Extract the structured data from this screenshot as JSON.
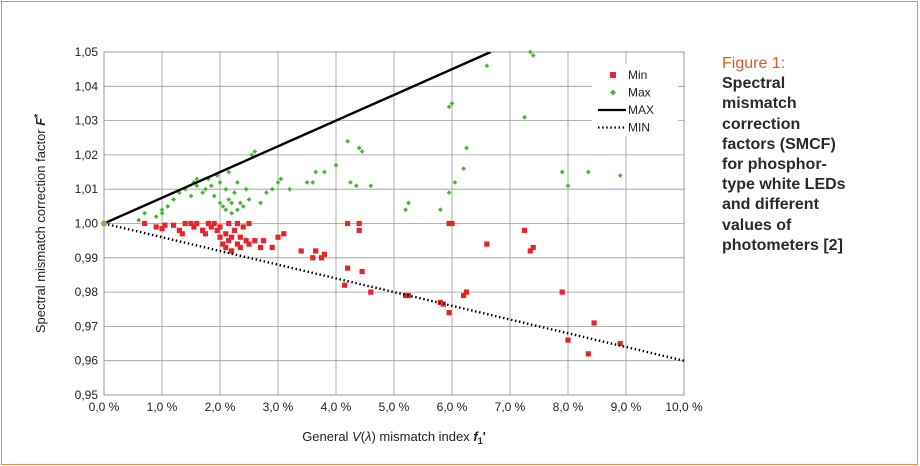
{
  "caption": {
    "label": "Figure 1:",
    "text": "Spectral\nmismatch\ncorrection\nfactors (SMCF)\nfor phosphor-\ntype white LEDs\nand different\nvalues of\nphotometers [2]"
  },
  "colors": {
    "frame": "#f08a4b",
    "caption_label": "#e4572e",
    "min": "#e8242b",
    "max": "#4bb636",
    "line": "#000000",
    "grid": "#9a9a9a"
  },
  "chart_data": {
    "type": "scatter",
    "title": "",
    "xlabel_parts": [
      "General ",
      "V",
      "(",
      "λ",
      ") mismatch index ",
      "f",
      "1",
      "'"
    ],
    "ylabel_parts": [
      "Spectral mismatch correction factor ",
      "F",
      "*"
    ],
    "xlim": [
      0,
      10
    ],
    "ylim": [
      0.95,
      1.05
    ],
    "x_ticks": [
      "0,0 %",
      "1,0 %",
      "2,0 %",
      "3,0 %",
      "4,0 %",
      "5,0 %",
      "6,0 %",
      "7,0 %",
      "8,0 %",
      "9,0 %",
      "10,0 %"
    ],
    "y_ticks": [
      "0,95",
      "0,96",
      "0,97",
      "0,98",
      "0,99",
      "1,00",
      "1,01",
      "1,02",
      "1,03",
      "1,04",
      "1,05"
    ],
    "grid": true,
    "legend_position": "top-right",
    "series": [
      {
        "name": "Min",
        "marker": "square",
        "color": "#e8242b",
        "points": [
          [
            0.7,
            1.0
          ],
          [
            0.9,
            0.999
          ],
          [
            1.0,
            0.9985
          ],
          [
            1.05,
            0.9995
          ],
          [
            1.2,
            0.9995
          ],
          [
            1.3,
            0.998
          ],
          [
            1.35,
            0.997
          ],
          [
            1.4,
            1.0
          ],
          [
            1.5,
            1.0
          ],
          [
            1.55,
            0.999
          ],
          [
            1.6,
            1.0
          ],
          [
            1.7,
            0.998
          ],
          [
            1.75,
            0.997
          ],
          [
            1.8,
            1.0
          ],
          [
            1.85,
            0.999
          ],
          [
            1.9,
            1.0
          ],
          [
            1.95,
            0.998
          ],
          [
            2.0,
            0.996
          ],
          [
            2.0,
            0.999
          ],
          [
            2.05,
            0.994
          ],
          [
            2.1,
            0.993
          ],
          [
            2.1,
            0.997
          ],
          [
            2.15,
            0.995
          ],
          [
            2.15,
            1.0
          ],
          [
            2.2,
            0.992
          ],
          [
            2.2,
            0.996
          ],
          [
            2.25,
            0.998
          ],
          [
            2.3,
            0.994
          ],
          [
            2.3,
            1.0
          ],
          [
            2.35,
            0.993
          ],
          [
            2.35,
            0.996
          ],
          [
            2.4,
            0.999
          ],
          [
            2.45,
            0.995
          ],
          [
            2.5,
            0.994
          ],
          [
            2.5,
            1.0
          ],
          [
            2.6,
            0.995
          ],
          [
            2.7,
            0.993
          ],
          [
            2.75,
            0.995
          ],
          [
            2.9,
            0.993
          ],
          [
            3.0,
            0.996
          ],
          [
            3.1,
            0.997
          ],
          [
            3.4,
            0.992
          ],
          [
            3.6,
            0.99
          ],
          [
            3.65,
            0.992
          ],
          [
            3.75,
            0.99
          ],
          [
            3.8,
            0.991
          ],
          [
            4.15,
            0.982
          ],
          [
            4.2,
            0.987
          ],
          [
            4.2,
            1.0
          ],
          [
            4.4,
            0.998
          ],
          [
            4.4,
            1.0
          ],
          [
            4.45,
            0.986
          ],
          [
            4.6,
            0.98
          ],
          [
            5.2,
            0.979
          ],
          [
            5.25,
            0.979
          ],
          [
            5.8,
            0.977
          ],
          [
            5.85,
            0.9765
          ],
          [
            5.95,
            0.974
          ],
          [
            5.95,
            1.0
          ],
          [
            6.0,
            1.0
          ],
          [
            6.2,
            0.979
          ],
          [
            6.25,
            0.98
          ],
          [
            6.6,
            0.994
          ],
          [
            7.25,
            0.998
          ],
          [
            7.35,
            0.992
          ],
          [
            7.4,
            0.993
          ],
          [
            7.9,
            0.98
          ],
          [
            8.0,
            0.966
          ],
          [
            8.35,
            0.962
          ],
          [
            8.45,
            0.971
          ],
          [
            8.9,
            0.965
          ]
        ]
      },
      {
        "name": "Max",
        "marker": "diamond",
        "color": "#4bb636",
        "points": [
          [
            0.6,
            1.001
          ],
          [
            0.7,
            1.003
          ],
          [
            0.9,
            1.002
          ],
          [
            1.0,
            1.004
          ],
          [
            1.0,
            1.003
          ],
          [
            1.1,
            1.005
          ],
          [
            1.2,
            1.007
          ],
          [
            1.3,
            1.009
          ],
          [
            1.4,
            1.01
          ],
          [
            1.5,
            1.008
          ],
          [
            1.55,
            1.012
          ],
          [
            1.6,
            1.011
          ],
          [
            1.6,
            1.013
          ],
          [
            1.7,
            1.009
          ],
          [
            1.75,
            1.01
          ],
          [
            1.8,
            1.013
          ],
          [
            1.85,
            1.011
          ],
          [
            1.9,
            1.008
          ],
          [
            1.95,
            1.014
          ],
          [
            2.0,
            1.006
          ],
          [
            2.0,
            1.012
          ],
          [
            2.05,
            1.005
          ],
          [
            2.1,
            1.004
          ],
          [
            2.1,
            1.01
          ],
          [
            2.15,
            1.007
          ],
          [
            2.15,
            1.015
          ],
          [
            2.2,
            1.003
          ],
          [
            2.2,
            1.006
          ],
          [
            2.25,
            1.009
          ],
          [
            2.3,
            1.004
          ],
          [
            2.3,
            1.012
          ],
          [
            2.35,
            1.006
          ],
          [
            2.4,
            1.005
          ],
          [
            2.45,
            1.01
          ],
          [
            2.5,
            1.007
          ],
          [
            2.55,
            1.02
          ],
          [
            2.6,
            1.021
          ],
          [
            2.7,
            1.006
          ],
          [
            2.8,
            1.009
          ],
          [
            2.9,
            1.01
          ],
          [
            3.0,
            1.012
          ],
          [
            3.05,
            1.013
          ],
          [
            3.2,
            1.01
          ],
          [
            3.5,
            1.012
          ],
          [
            3.6,
            1.012
          ],
          [
            3.65,
            1.015
          ],
          [
            3.8,
            1.015
          ],
          [
            4.0,
            1.017
          ],
          [
            4.2,
            1.024
          ],
          [
            4.25,
            1.012
          ],
          [
            4.35,
            1.011
          ],
          [
            4.4,
            1.022
          ],
          [
            4.45,
            1.021
          ],
          [
            4.6,
            1.011
          ],
          [
            5.2,
            1.004
          ],
          [
            5.25,
            1.006
          ],
          [
            5.8,
            1.004
          ],
          [
            5.95,
            1.009
          ],
          [
            5.95,
            1.034
          ],
          [
            6.0,
            1.035
          ],
          [
            6.05,
            1.012
          ],
          [
            6.2,
            1.016
          ],
          [
            6.25,
            1.022
          ],
          [
            6.6,
            1.046
          ],
          [
            7.25,
            1.031
          ],
          [
            7.35,
            1.05
          ],
          [
            7.4,
            1.049
          ],
          [
            7.9,
            1.015
          ],
          [
            8.0,
            1.011
          ],
          [
            8.35,
            1.015
          ],
          [
            8.9,
            1.014
          ]
        ]
      },
      {
        "name": "MAX",
        "style": "solid",
        "color": "#000000",
        "points": [
          [
            0,
            1.0
          ],
          [
            6.667,
            1.05
          ]
        ]
      },
      {
        "name": "MIN",
        "style": "dotted",
        "color": "#000000",
        "points": [
          [
            0,
            1.0
          ],
          [
            10,
            0.96
          ]
        ]
      }
    ]
  }
}
